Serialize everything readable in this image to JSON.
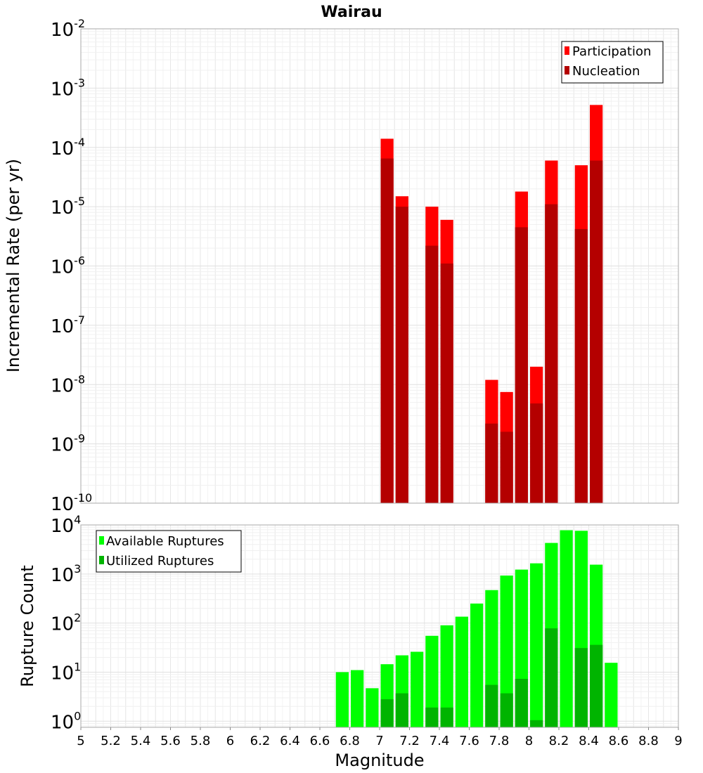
{
  "chart_data": [
    {
      "type": "bar",
      "title": "Wairau",
      "ylabel": "Incremental Rate (per yr)",
      "xlabel": "",
      "xlim": [
        5,
        9
      ],
      "ylim": [
        1e-10,
        0.01
      ],
      "yscale": "log",
      "legend_position": "top-right",
      "x": [
        7.05,
        7.15,
        7.35,
        7.45,
        7.75,
        7.85,
        7.95,
        8.05,
        8.15,
        8.35,
        8.45
      ],
      "series": [
        {
          "name": "Participation",
          "color": "#ff0000",
          "values": [
            0.00014,
            1.5e-05,
            1e-05,
            6e-06,
            1.2e-08,
            7.5e-09,
            1.8e-05,
            2e-08,
            6e-05,
            5e-05,
            0.00052
          ]
        },
        {
          "name": "Nucleation",
          "color": "#b40000",
          "values": [
            6.5e-05,
            1e-05,
            2.2e-06,
            1.1e-06,
            2.2e-09,
            1.6e-09,
            4.5e-06,
            4.8e-09,
            1.1e-05,
            4.2e-06,
            6e-05
          ]
        }
      ],
      "y_tick_exponents": [
        "-2",
        "-3",
        "-4",
        "-5",
        "-6",
        "-7",
        "-8",
        "-9",
        "-10"
      ],
      "y_tick_base": "10"
    },
    {
      "type": "bar",
      "title": "",
      "ylabel": "Rupture Count",
      "xlabel": "Magnitude",
      "xlim": [
        5,
        9
      ],
      "ylim": [
        0.75,
        10000
      ],
      "yscale": "log",
      "legend_position": "top-left",
      "x": [
        6.75,
        6.85,
        6.95,
        7.05,
        7.15,
        7.25,
        7.35,
        7.45,
        7.55,
        7.65,
        7.75,
        7.85,
        7.95,
        8.05,
        8.15,
        8.25,
        8.35,
        8.45,
        8.55
      ],
      "series": [
        {
          "name": "Available Ruptures",
          "color": "#00ff00",
          "values": [
            10,
            11,
            4.7,
            14.5,
            22,
            26,
            55,
            90,
            135,
            250,
            470,
            930,
            1230,
            1650,
            4300,
            7800,
            7600,
            1550,
            15.5
          ]
        },
        {
          "name": "Utilized Ruptures",
          "color": "#00b400",
          "values": [
            null,
            null,
            null,
            2.8,
            3.7,
            null,
            1.9,
            1.9,
            null,
            null,
            5.5,
            3.7,
            7.3,
            1.05,
            78,
            null,
            31,
            36,
            null
          ]
        }
      ],
      "y_tick_exponents": [
        "4",
        "3",
        "2",
        "1",
        "0"
      ],
      "y_tick_base": "10",
      "x_ticks": [
        "5",
        "5.2",
        "5.4",
        "5.6",
        "5.8",
        "6",
        "6.2",
        "6.4",
        "6.6",
        "6.8",
        "7",
        "7.2",
        "7.4",
        "7.6",
        "7.8",
        "8",
        "8.2",
        "8.4",
        "8.6",
        "8.8",
        "9"
      ]
    }
  ]
}
